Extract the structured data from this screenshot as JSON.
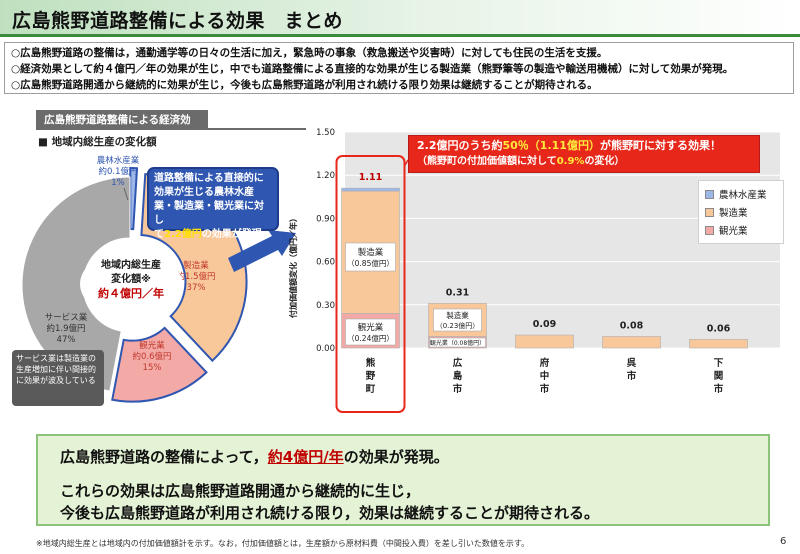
{
  "title": "広島熊野道路整備による効果　まとめ",
  "summary": [
    "○広島熊野道路の整備は，通勤通学等の日々の生活に加え，緊急時の事象（救急搬送や災害時）に対しても住民の生活を支援。",
    "○経済効果として約４億円／年の効果が生じ，中でも道路整備による直接的な効果が生じる製造業（熊野筆等の製造や輸送用機械）に対して効果が発現。",
    "○広島熊野道路開通から継続的に効果が生じ，今後も広島熊野道路が利用され続ける限り効果は継続することが期待される。"
  ],
  "section_label": "広島熊野道路整備による経済効果",
  "sub_label": "■ 地域内総生産の変化額",
  "pie": {
    "center_lines": [
      "地域内総生産",
      "変化額※"
    ],
    "center_value": "約４億円／年",
    "slices": [
      {
        "name": "農林水産業",
        "value_text": "約0.1億円",
        "pct_text": "1%",
        "pct": 1,
        "color": "#9db7e8"
      },
      {
        "name": "製造業",
        "value_text": "約1.5億円",
        "pct_text": "37%",
        "pct": 37,
        "color": "#f8c79a"
      },
      {
        "name": "観光業",
        "value_text": "約0.6億円",
        "pct_text": "15%",
        "pct": 15,
        "color": "#f3a9a6"
      },
      {
        "name": "サービス業",
        "value_text": "約1.9億円",
        "pct_text": "47%",
        "pct": 47,
        "color": "#a8a8a8"
      }
    ]
  },
  "blue_callout": {
    "line1": "道路整備による直接的に",
    "line2": "効果が生じる農林水産",
    "line3": "業・製造業・観光業に対し",
    "line4a": "て",
    "line4_hl": "2.2億円",
    "line4b": "の効果が発現"
  },
  "note_box": "サービス業は製造業の生産増加に伴い間接的に効果が波及している",
  "red_callout": {
    "l1a": "2.2億円のうち約",
    "l1_hl1": "50％（1.11億円）",
    "l1b": "が熊野町に対する効果！",
    "l2a": "（熊野町の付加価値額に対して",
    "l2_hl": "0.9%",
    "l2b": "の変化）"
  },
  "chart_data": {
    "type": "bar",
    "stacked": true,
    "ylabel": "付加価値額変化（億円／年）",
    "ylim": [
      0,
      1.5
    ],
    "yticks": [
      "0.00",
      "0.30",
      "0.60",
      "0.90",
      "1.20",
      "1.50"
    ],
    "categories": [
      "熊野町",
      "広島市",
      "府中市",
      "呉市",
      "下関市"
    ],
    "category_labels": [
      [
        "熊",
        "野",
        "町"
      ],
      [
        "広",
        "島",
        "市"
      ],
      [
        "府",
        "中",
        "市"
      ],
      [
        "呉",
        "市"
      ],
      [
        "下",
        "関",
        "市"
      ]
    ],
    "totals": [
      1.11,
      0.31,
      0.09,
      0.08,
      0.06
    ],
    "total_labels": [
      "1.11",
      "0.31",
      "0.09",
      "0.08",
      "0.06"
    ],
    "series": [
      {
        "name": "観光業",
        "color": "#f3a9a6",
        "values": [
          0.24,
          0.08,
          0,
          0,
          0
        ]
      },
      {
        "name": "製造業",
        "color": "#f8c79a",
        "values": [
          0.85,
          0.23,
          0.09,
          0.08,
          0.06
        ]
      },
      {
        "name": "農林水産業",
        "color": "#9db7e8",
        "values": [
          0.02,
          0,
          0,
          0,
          0
        ]
      }
    ],
    "segment_labels": {
      "kumano_manufacturing": [
        "製造業",
        "（0.85億円）"
      ],
      "kumano_tourism": [
        "観光業",
        "（0.24億円）"
      ],
      "hiroshima_manufacturing": [
        "製造業",
        "（0.23億円）"
      ],
      "hiroshima_tourism": "観光業（0.08億円）"
    },
    "legend": [
      "農林水産業",
      "製造業",
      "観光業"
    ],
    "legend_position": "top-right"
  },
  "bottom": {
    "line1a": "広島熊野道路の整備によって，",
    "line1_hl": "約4億円/年",
    "line1b": "の効果が発現。",
    "line2": "これらの効果は広島熊野道路開通から継続的に生じ，",
    "line3": "今後も広島熊野道路が利用され続ける限り，効果は継続することが期待される。"
  },
  "footnote": "※地域内総生産とは地域内の付加価値額計を示す。なお，付加価値額とは，生産額から原材料費（中間投入費）を差し引いた数値を示す。",
  "page_number": "6"
}
